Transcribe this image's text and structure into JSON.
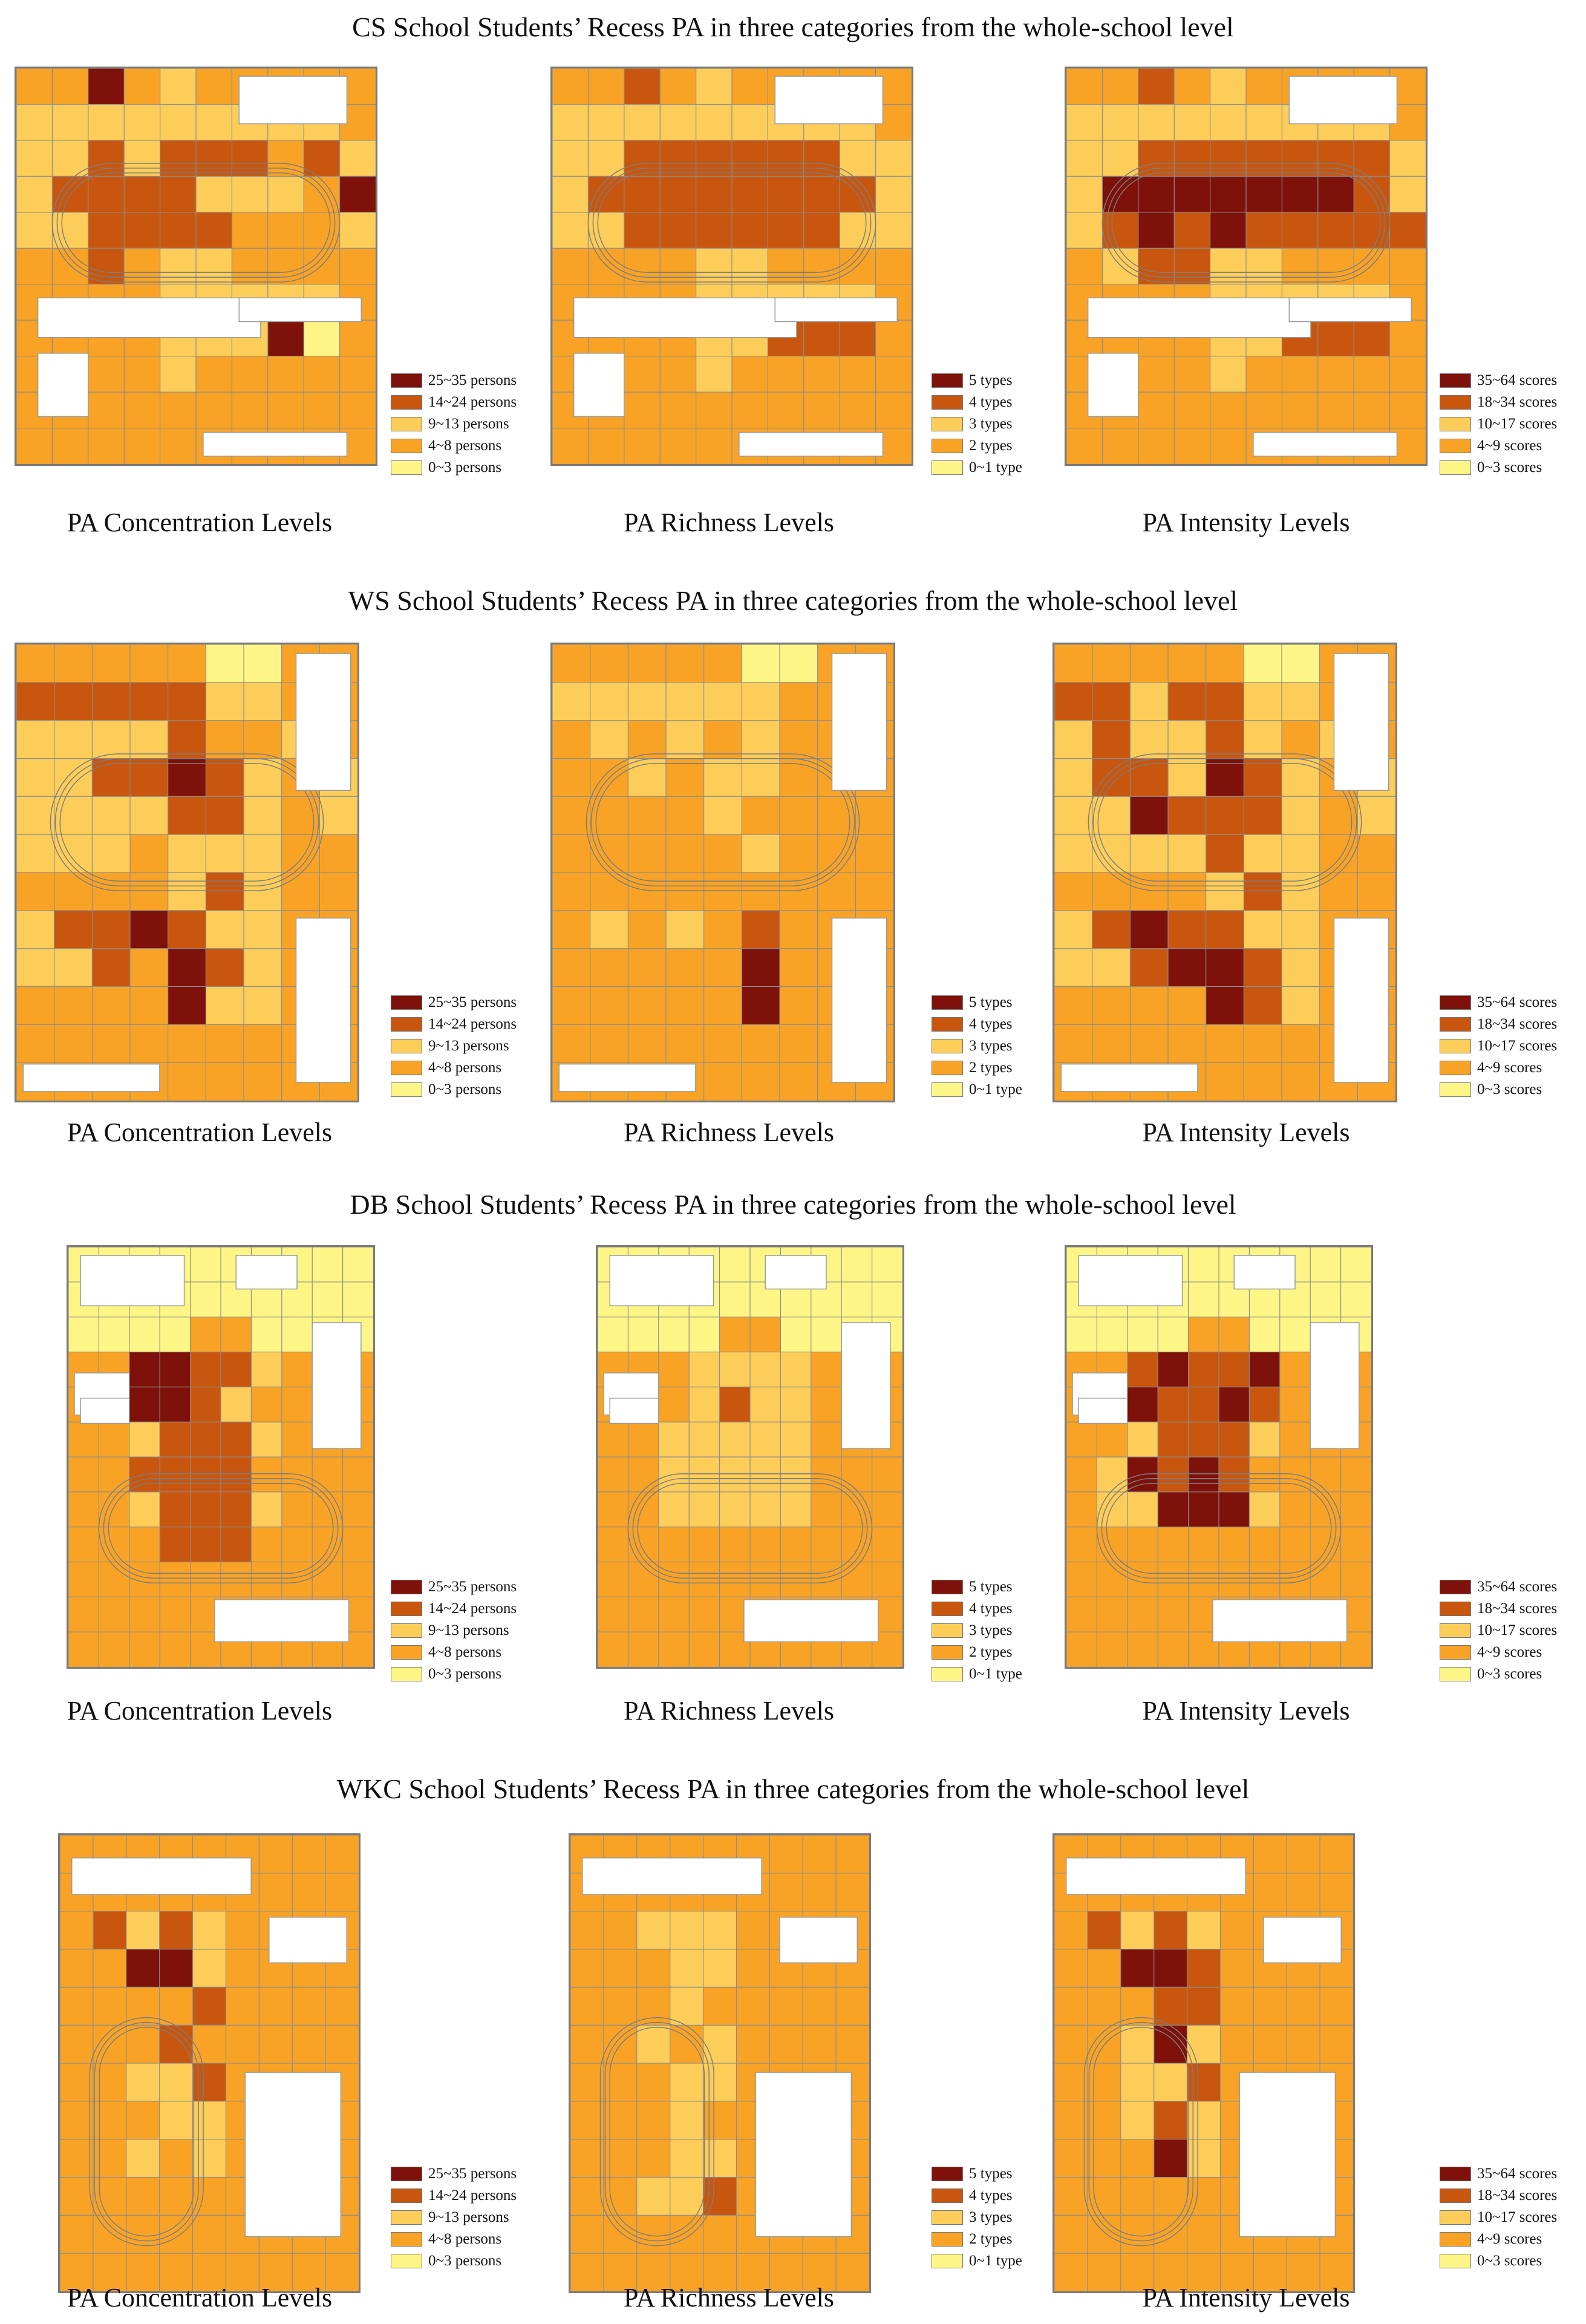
{
  "colors": {
    "level5": "#7e1109",
    "level4": "#c8560f",
    "level3": "#fccd58",
    "level2": "#f8a326",
    "level1": "#fdf686",
    "building": "#ffffff",
    "lines": "#8d8d8d"
  },
  "legends": {
    "concentration": [
      "25~35 persons",
      "14~24 persons",
      "9~13 persons",
      "4~8 persons",
      "0~3 persons"
    ],
    "richness": [
      "5 types",
      "4 types",
      "3 types",
      "2 types",
      "0~1 type"
    ],
    "intensity": [
      "35~64 scores",
      "18~34 scores",
      "10~17 scores",
      "4~9 scores",
      "0~3 scores"
    ]
  },
  "captions": {
    "concentration": "PA Concentration Levels",
    "richness": "PA  Richness Levels",
    "intensity": "PA  Intensity Levels"
  },
  "sections": [
    {
      "title": "CS School Students’ Recess PA in three categories from the whole-school level",
      "maps": [
        {
          "kind": "concentration",
          "rows": [
            "2252322222",
            "3333333332",
            "3343444243",
            "3444433325",
            "3344442223",
            "2242332222",
            "2222333332",
            "2222333512",
            "2222322222",
            "2222222222",
            "2222222222"
          ]
        },
        {
          "kind": "richness",
          "rows": [
            "2242322222",
            "3333333332",
            "3344444433",
            "3444444443",
            "3344444433",
            "2222332222",
            "2222333332",
            "2222334442",
            "2222322222",
            "2222222222",
            "2222222222"
          ]
        },
        {
          "kind": "intensity",
          "rows": [
            "2242322222",
            "3333333332",
            "3344444443",
            "3555555543",
            "3454544444",
            "2344332222",
            "2222333332",
            "2222334442",
            "2222322222",
            "2222222222",
            "2222222222"
          ]
        }
      ]
    },
    {
      "title": "WS School Students’ Recess PA in three categories from the whole-school level",
      "maps": [
        {
          "kind": "concentration",
          "rows": [
            "222221122",
            "444443322",
            "333342232",
            "334454323",
            "333344323",
            "333233322",
            "222234322",
            "344543322",
            "334254322",
            "222253322",
            "222222222",
            "222222222"
          ]
        },
        {
          "kind": "richness",
          "rows": [
            "222221122",
            "333333222",
            "232323222",
            "223233222",
            "222232222",
            "222223222",
            "222222222",
            "232324222",
            "222225222",
            "222225222",
            "222222222",
            "222222222"
          ]
        },
        {
          "kind": "intensity",
          "rows": [
            "222221122",
            "443443322",
            "343343232",
            "344354323",
            "335444323",
            "333343322",
            "222234322",
            "345443322",
            "334554322",
            "222254322",
            "222222222",
            "222222222"
          ]
        }
      ]
    },
    {
      "title": "DB School Students’ Recess PA in three categories from the whole-school level",
      "maps": [
        {
          "kind": "concentration",
          "rows": [
            "1111111111",
            "1111111111",
            "1111221111",
            "2255443222",
            "2255432222",
            "2234443222",
            "2244442222",
            "2234443222",
            "2224442222",
            "2222222222",
            "2222222222",
            "2222222222"
          ]
        },
        {
          "kind": "richness",
          "rows": [
            "1111111111",
            "1111111111",
            "1111221111",
            "2223333222",
            "2223433222",
            "2233333222",
            "2233333222",
            "2233333222",
            "2222222222",
            "2222222222",
            "2222222222",
            "2222222222"
          ]
        },
        {
          "kind": "intensity",
          "rows": [
            "1111111111",
            "1111111111",
            "1111221111",
            "2245445222",
            "2254454222",
            "2234443222",
            "2354542222",
            "2335553222",
            "2222222222",
            "2222222222",
            "2222222222",
            "2222222222"
          ]
        }
      ]
    },
    {
      "title": "WKC School Students’ Recess PA in three categories from the whole-school level",
      "maps": [
        {
          "kind": "concentration",
          "rows": [
            "222222222",
            "222222222",
            "243432222",
            "225532222",
            "222242222",
            "222422222",
            "223342222",
            "222332222",
            "223232222",
            "222222222",
            "222222222",
            "222222222"
          ]
        },
        {
          "kind": "richness",
          "rows": [
            "222222222",
            "222222222",
            "223332222",
            "222332222",
            "222322222",
            "223232222",
            "222332222",
            "222322222",
            "222332222",
            "223342222",
            "222222222",
            "222222222"
          ]
        },
        {
          "kind": "intensity",
          "rows": [
            "222222222",
            "222222222",
            "243432222",
            "225542222",
            "222442222",
            "223532222",
            "223342222",
            "223432222",
            "222532222",
            "222222222",
            "222222222",
            "222222222"
          ]
        }
      ]
    }
  ]
}
